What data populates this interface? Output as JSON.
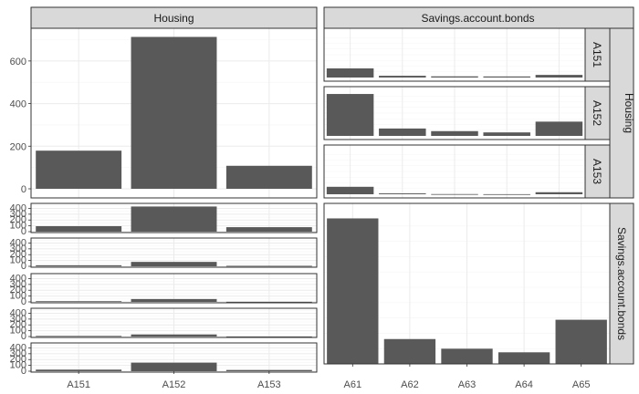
{
  "chart_data": {
    "type": "bar",
    "column_strips": [
      "Housing",
      "Savings.account.bonds"
    ],
    "row_strips": [
      "Housing",
      "Savings.account.bonds"
    ],
    "housing_sub_strips": [
      "A151",
      "A152",
      "A153"
    ],
    "x_tick_labels": {
      "Housing": [
        "A151",
        "A152",
        "A153"
      ],
      "Savings.account.bonds": [
        "A61",
        "A62",
        "A63",
        "A64",
        "A65"
      ]
    },
    "panels": {
      "housing_x_housing": {
        "categories": [
          "A151",
          "A152",
          "A153"
        ],
        "values": [
          179,
          713,
          108
        ],
        "ylim": [
          0,
          745
        ],
        "yticks": [
          0,
          200,
          400,
          600
        ]
      },
      "housing_x_savings": {
        "categories": [
          "A61",
          "A62",
          "A63",
          "A64",
          "A65"
        ],
        "rows": [
          {
            "strip": "A151",
            "values": [
              94,
              18,
              12,
              11,
              27
            ]
          },
          {
            "strip": "A152",
            "values": [
              432,
              76,
              49,
              36,
              147
            ]
          },
          {
            "strip": "A153",
            "values": [
              77,
              9,
              2,
              1,
              21
            ]
          }
        ],
        "ylim": [
          0,
          470
        ],
        "yticks": [
          0,
          100,
          200,
          300,
          400
        ]
      },
      "savings_x_housing": {
        "categories": [
          "A151",
          "A152",
          "A153"
        ],
        "rows": [
          {
            "values": [
              94,
              432,
              77
            ]
          },
          {
            "values": [
              18,
              76,
              9
            ]
          },
          {
            "values": [
              12,
              49,
              2
            ]
          },
          {
            "values": [
              11,
              36,
              1
            ]
          },
          {
            "values": [
              27,
              147,
              21
            ]
          }
        ],
        "ylim": [
          0,
          470
        ],
        "yticks": [
          0,
          100,
          200,
          300,
          400
        ]
      },
      "savings_x_savings": {
        "categories": [
          "A61",
          "A62",
          "A63",
          "A64",
          "A65"
        ],
        "values": [
          603,
          103,
          63,
          48,
          183
        ],
        "ylim": [
          0,
          635
        ]
      }
    },
    "colors": {
      "bar": "#595959",
      "strip_fill": "#d9d9d9",
      "grid_major": "#ebebeb",
      "grid_minor": "#f5f5f5",
      "panel_border": "#333333",
      "tick_text": "#4d4d4d"
    },
    "grid": true
  }
}
